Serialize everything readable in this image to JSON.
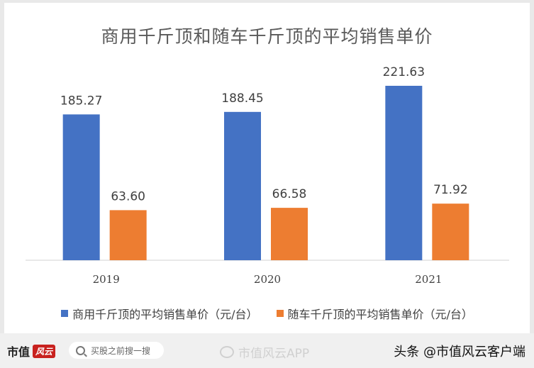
{
  "chart_data": {
    "type": "bar",
    "title": "商用千斤顶和随车千斤顶的平均销售单价",
    "categories": [
      "2019",
      "2020",
      "2021"
    ],
    "series": [
      {
        "name": "商用千斤顶的平均销售单价（元/台）",
        "values": [
          185.27,
          188.45,
          221.63
        ],
        "labels": [
          "185.27",
          "188.45",
          "221.63"
        ],
        "color": "#4472c4"
      },
      {
        "name": "随车千斤顶的平均销售单价（元/台）",
        "values": [
          63.6,
          66.58,
          71.92
        ],
        "labels": [
          "63.60",
          "66.58",
          "71.92"
        ],
        "color": "#ed7d31"
      }
    ],
    "ylim": [
      0,
      230
    ],
    "grid": false,
    "legend": "bottom"
  },
  "footer": {
    "brand": "市值",
    "brand_mark": "风云",
    "search_placeholder": "买股之前搜一搜",
    "weibo_text": "市值风云APP",
    "toutiao_text": "头条 @市值风云客户端"
  },
  "icons": {
    "search": "search-icon",
    "weibo": "weibo-icon"
  }
}
